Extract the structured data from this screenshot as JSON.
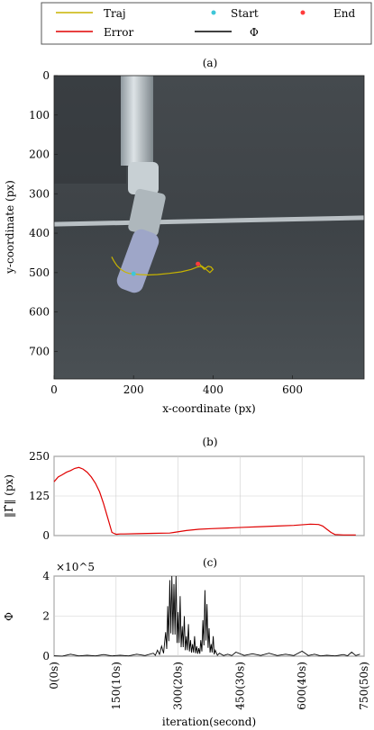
{
  "legend": {
    "items": [
      {
        "label": "Traj",
        "type": "line",
        "color": "#c8b400"
      },
      {
        "label": "Start",
        "type": "dot",
        "color": "#3ec6d8"
      },
      {
        "label": "End",
        "type": "dot",
        "color": "#ff3b3b"
      },
      {
        "label": "Error",
        "type": "line",
        "color": "#e00000"
      },
      {
        "label": "Φ",
        "type": "line",
        "color": "#000000"
      }
    ]
  },
  "colors": {
    "traj": "#c8b400",
    "start": "#3ec6d8",
    "end": "#ff3b3b",
    "error": "#e00000",
    "phi": "#000000",
    "scene_bg": "#3f4448",
    "robot_arm": "#c9d2d8"
  },
  "chart_data": [
    {
      "panel_label": "(a)",
      "type": "scatter",
      "xlabel": "x-coordinate (px)",
      "ylabel": "y-coordinate (px)",
      "xlim": [
        0,
        780
      ],
      "ylim": [
        770,
        0
      ],
      "xticks": [
        0,
        200,
        400,
        600
      ],
      "yticks": [
        0,
        100,
        200,
        300,
        400,
        500,
        600,
        700
      ],
      "background": "camera image of robot arm",
      "trajectory": {
        "name": "Traj",
        "x": [
          145,
          150,
          158,
          168,
          178,
          188,
          198,
          215,
          235,
          260,
          290,
          320,
          345,
          360,
          372,
          378,
          385,
          392,
          400,
          395,
          388,
          382,
          378,
          372,
          368,
          362
        ],
        "y": [
          460,
          470,
          482,
          492,
          498,
          502,
          503,
          505,
          506,
          505,
          502,
          498,
          492,
          486,
          484,
          488,
          494,
          500,
          492,
          486,
          484,
          488,
          492,
          486,
          480,
          478
        ]
      },
      "start": {
        "x": 200,
        "y": 503
      },
      "end": {
        "x": 362,
        "y": 478
      }
    },
    {
      "panel_label": "(b)",
      "type": "line",
      "ylabel": "‖Γ̂‖ (px)",
      "xlim": [
        0,
        750
      ],
      "ylim": [
        0,
        250
      ],
      "yticks": [
        0,
        125,
        250
      ],
      "series": [
        {
          "name": "Error",
          "x": [
            0,
            10,
            20,
            30,
            40,
            50,
            60,
            70,
            80,
            90,
            100,
            110,
            120,
            130,
            140,
            150,
            160,
            170,
            200,
            240,
            280,
            290,
            320,
            350,
            380,
            420,
            460,
            500,
            540,
            580,
            620,
            640,
            650,
            660,
            670,
            680,
            700,
            730
          ],
          "y": [
            170,
            185,
            192,
            200,
            205,
            212,
            215,
            210,
            200,
            185,
            165,
            138,
            100,
            55,
            10,
            4,
            5,
            5,
            6,
            7,
            8,
            10,
            16,
            20,
            22,
            24,
            26,
            28,
            30,
            32,
            36,
            35,
            30,
            20,
            10,
            3,
            2,
            2
          ]
        }
      ]
    },
    {
      "panel_label": "(c)",
      "type": "line",
      "ylabel": "Φ",
      "yscale_label": "×10^5",
      "xlabel": "iteration(second)",
      "xlim": [
        0,
        750
      ],
      "ylim": [
        0,
        4
      ],
      "yticks": [
        0,
        2,
        4
      ],
      "xtick_labels": [
        "0(0s)",
        "150(10s)",
        "300(20s)",
        "450(30s)",
        "600(40s)",
        "750(50s)"
      ],
      "xtick_values": [
        0,
        150,
        300,
        450,
        600,
        750
      ],
      "series": [
        {
          "name": "Φ",
          "x": [
            0,
            40,
            80,
            120,
            160,
            200,
            240,
            250,
            260,
            270,
            275,
            280,
            285,
            290,
            295,
            300,
            305,
            310,
            315,
            320,
            325,
            330,
            335,
            340,
            345,
            350,
            355,
            360,
            365,
            370,
            375,
            380,
            385,
            390,
            400,
            420,
            440,
            480,
            520,
            560,
            600,
            630,
            660,
            700,
            720,
            740
          ],
          "y": [
            0.02,
            0.1,
            0.05,
            0.08,
            0.05,
            0.1,
            0.15,
            0.3,
            0.5,
            1.2,
            2.5,
            3.8,
            4.0,
            3.6,
            4.0,
            2.2,
            3.0,
            1.5,
            2.0,
            1.0,
            1.6,
            0.8,
            0.6,
            1.0,
            0.5,
            0.4,
            0.8,
            1.8,
            3.3,
            2.6,
            1.4,
            0.6,
            1.0,
            0.3,
            0.15,
            0.1,
            0.2,
            0.12,
            0.15,
            0.1,
            0.25,
            0.1,
            0.05,
            0.08,
            0.2,
            0.1
          ]
        }
      ]
    }
  ]
}
